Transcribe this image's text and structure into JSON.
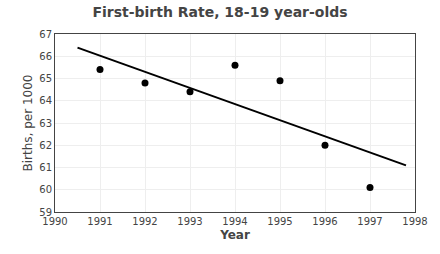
{
  "chart_data": {
    "type": "scatter",
    "title": "First-birth Rate, 18-19 year-olds",
    "xlabel": "Year",
    "ylabel": "Births, per 1000",
    "series": [
      {
        "type": "scatter",
        "marker": "circle",
        "color": "#000000",
        "x": [
          1991,
          1992,
          1993,
          1994,
          1995,
          1996,
          1997
        ],
        "values": [
          65.4,
          64.8,
          64.4,
          65.6,
          64.9,
          62.0,
          60.1
        ]
      },
      {
        "type": "line",
        "color": "#000000",
        "x": [
          1990.5,
          1997.8
        ],
        "values": [
          66.3875,
          61.095
        ]
      }
    ],
    "xlim": [
      1990,
      1998
    ],
    "ylim": [
      59,
      67
    ],
    "xticks": [
      1990,
      1991,
      1992,
      1993,
      1994,
      1995,
      1996,
      1997,
      1998
    ],
    "yticks": [
      59,
      60,
      61,
      62,
      63,
      64,
      65,
      66,
      67
    ],
    "grid": true
  }
}
